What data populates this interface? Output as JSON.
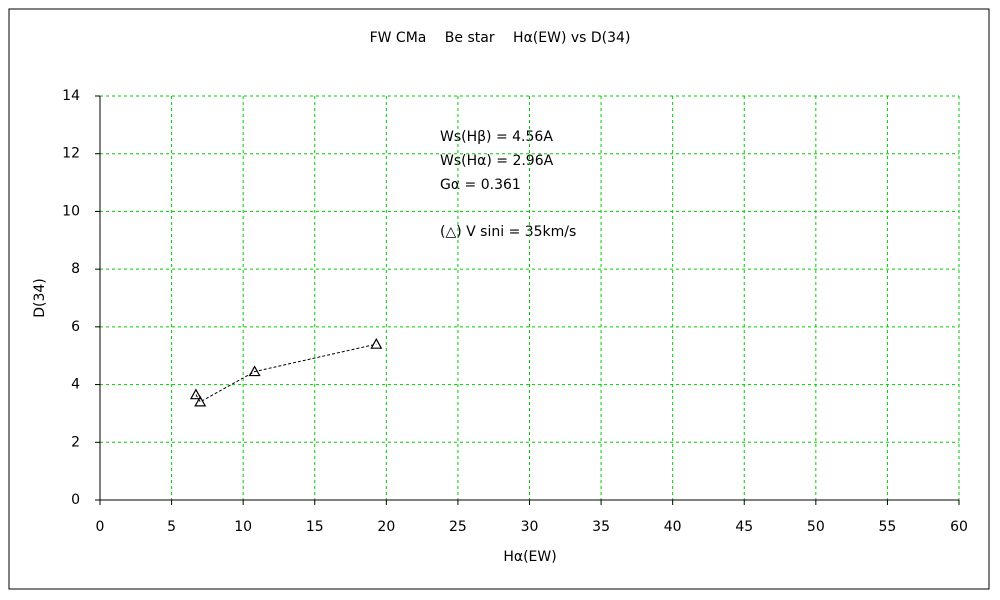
{
  "chart_data": {
    "type": "scatter",
    "title": "FW CMa　 Be star　 Hα(EW) vs D(34)",
    "x_label": "Hα(EW)",
    "y_label": "D(34)",
    "annotations": [
      "Ws(Hβ) = 4.56A",
      "Ws(Hα) = 2.96A",
      "Gα = 0.361",
      "(△) V sini = 35km/s"
    ],
    "series": [
      {
        "name": "V sini = 35km/s",
        "color": "#000000",
        "marker": "triangle",
        "line": "dashed",
        "x": [
          6.7,
          7.0,
          10.8,
          19.3
        ],
        "values": [
          3.65,
          3.4,
          4.45,
          5.4
        ]
      }
    ],
    "xlim": [
      0,
      60
    ],
    "xticks": [
      0,
      5,
      10,
      15,
      20,
      25,
      30,
      35,
      40,
      45,
      50,
      55,
      60
    ],
    "ylim": [
      0,
      14
    ],
    "yticks": [
      0,
      2,
      4,
      6,
      8,
      10,
      12,
      14
    ],
    "grid": true
  }
}
